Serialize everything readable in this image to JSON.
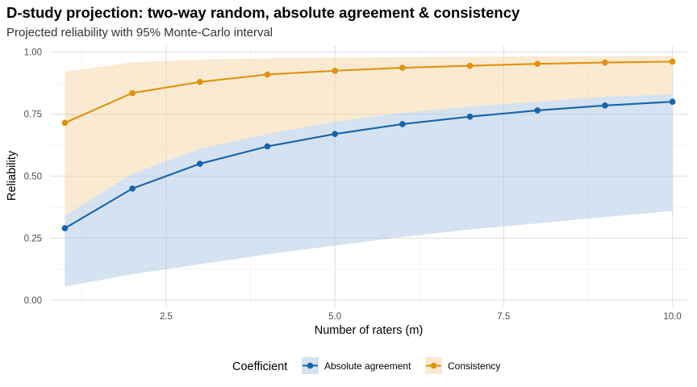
{
  "chart_data": {
    "type": "line",
    "title": "D-study projection: two-way random, absolute agreement & consistency",
    "subtitle": "Projected reliability with 95% Monte-Carlo interval",
    "xlabel": "Number of raters (m)",
    "ylabel": "Reliability",
    "xlim": [
      0.78,
      10.22
    ],
    "ylim": [
      -0.025,
      1.025
    ],
    "x_ticks": [
      2.5,
      5.0,
      7.5,
      10.0
    ],
    "x_tick_labels": [
      "2.5",
      "5.0",
      "7.5",
      "10.0"
    ],
    "y_ticks": [
      0.0,
      0.25,
      0.5,
      0.75,
      1.0
    ],
    "y_tick_labels": [
      "0.00",
      "0.25",
      "0.50",
      "0.75",
      "1.00"
    ],
    "grid": true,
    "legend_position": "bottom",
    "legend_title": "Coefficient",
    "x": [
      1,
      2,
      3,
      4,
      5,
      6,
      7,
      8,
      9,
      10
    ],
    "series": [
      {
        "name": "Absolute agreement",
        "color": "#1764AB",
        "band_color": "#A9C6E4",
        "values": [
          0.29,
          0.45,
          0.55,
          0.62,
          0.67,
          0.71,
          0.74,
          0.765,
          0.785,
          0.8
        ],
        "lower": [
          0.055,
          0.105,
          0.145,
          0.185,
          0.22,
          0.255,
          0.285,
          0.31,
          0.335,
          0.36
        ],
        "upper": [
          0.34,
          0.51,
          0.61,
          0.67,
          0.72,
          0.755,
          0.78,
          0.8,
          0.82,
          0.83
        ]
      },
      {
        "name": "Consistency",
        "color": "#E0920F",
        "band_color": "#F3D6A4",
        "values": [
          0.715,
          0.835,
          0.88,
          0.91,
          0.925,
          0.937,
          0.945,
          0.953,
          0.958,
          0.962
        ],
        "lower": [
          0.34,
          0.51,
          0.61,
          0.67,
          0.72,
          0.755,
          0.78,
          0.8,
          0.82,
          0.83
        ],
        "upper": [
          0.92,
          0.96,
          0.97,
          0.975,
          0.978,
          0.98,
          0.982,
          0.983,
          0.984,
          0.985
        ]
      }
    ]
  }
}
